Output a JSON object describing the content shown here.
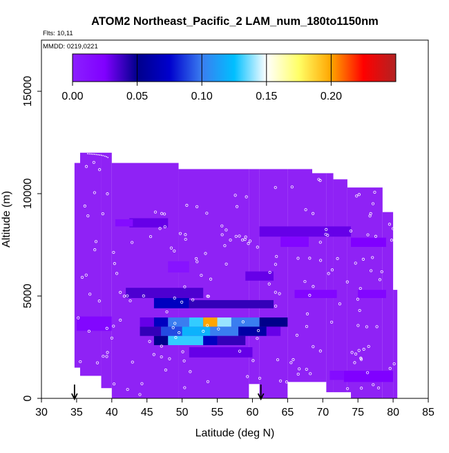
{
  "chart_data": {
    "type": "heatmap",
    "title": "ATOM2 Northeast_Pacific_2 LAM_num_180to1150nm",
    "info_lines": [
      "Flts: 10,11",
      "MMDD: 0219,0221"
    ],
    "xlabel": "Latitude (deg N)",
    "ylabel": "Altitude (m)",
    "xlim": [
      30,
      85
    ],
    "ylim": [
      0,
      17500
    ],
    "x_ticks": [
      "30",
      "35",
      "40",
      "45",
      "50",
      "55",
      "60",
      "65",
      "70",
      "75",
      "80",
      "85"
    ],
    "y_ticks": [
      "0",
      "5000",
      "10000",
      "15000"
    ],
    "colorbar": {
      "range": [
        0,
        0.25
      ],
      "tick_labels": [
        "0.00",
        "0.05",
        "0.10",
        "0.15",
        "0.20"
      ],
      "tick_values": [
        0,
        0.05,
        0.1,
        0.15,
        0.2
      ],
      "gradient": [
        "#8b1fff",
        "#8000ff",
        "#00008b",
        "#0000cd",
        "#3a7df0",
        "#00bfff",
        "#ffffff",
        "#ffff66",
        "#ffa500",
        "#ff0000",
        "#b22222"
      ]
    },
    "background_color": "#8f22f5",
    "arrows_at_latitude": [
      34.7,
      61.2
    ],
    "colored_cells": [
      {
        "lat": [
          42.5,
          48
        ],
        "alt": [
          8350,
          8800
        ],
        "value": 0.03
      },
      {
        "lat": [
          40.5,
          43
        ],
        "alt": [
          8400,
          8750
        ],
        "value": 0.015
      },
      {
        "lat": [
          48,
          51
        ],
        "alt": [
          6150,
          6700
        ],
        "value": 0.01
      },
      {
        "lat": [
          61,
          74
        ],
        "alt": [
          7900,
          8400
        ],
        "value": 0.03
      },
      {
        "lat": [
          64,
          68
        ],
        "alt": [
          7400,
          7900
        ],
        "value": 0.02
      },
      {
        "lat": [
          74,
          79
        ],
        "alt": [
          7400,
          7850
        ],
        "value": 0.025
      },
      {
        "lat": [
          59,
          63
        ],
        "alt": [
          5750,
          6200
        ],
        "value": 0.03
      },
      {
        "lat": [
          42,
          53
        ],
        "alt": [
          4900,
          5400
        ],
        "value": 0.035
      },
      {
        "lat": [
          46,
          51
        ],
        "alt": [
          4400,
          4900
        ],
        "value": 0.07
      },
      {
        "lat": [
          51,
          63
        ],
        "alt": [
          4400,
          4800
        ],
        "value": 0.04
      },
      {
        "lat": [
          66,
          72
        ],
        "alt": [
          4900,
          5300
        ],
        "value": 0.02
      },
      {
        "lat": [
          75,
          79
        ],
        "alt": [
          4900,
          5300
        ],
        "value": 0.02
      },
      {
        "lat": [
          35,
          40
        ],
        "alt": [
          3300,
          4000
        ],
        "value": 0.02
      },
      {
        "lat": [
          44,
          46
        ],
        "alt": [
          3500,
          3950
        ],
        "value": 0.03
      },
      {
        "lat": [
          46,
          48
        ],
        "alt": [
          3500,
          3950
        ],
        "value": 0.07
      },
      {
        "lat": [
          48,
          51
        ],
        "alt": [
          3500,
          3950
        ],
        "value": 0.1
      },
      {
        "lat": [
          51,
          53
        ],
        "alt": [
          3500,
          3950
        ],
        "value": 0.13
      },
      {
        "lat": [
          53,
          55
        ],
        "alt": [
          3500,
          3950
        ],
        "value": 0.2
      },
      {
        "lat": [
          55,
          57
        ],
        "alt": [
          3500,
          3950
        ],
        "value": 0.14
      },
      {
        "lat": [
          57,
          61
        ],
        "alt": [
          3500,
          3950
        ],
        "value": 0.1
      },
      {
        "lat": [
          61,
          65
        ],
        "alt": [
          3500,
          3950
        ],
        "value": 0.05
      },
      {
        "lat": [
          44,
          47
        ],
        "alt": [
          3050,
          3500
        ],
        "value": 0.04
      },
      {
        "lat": [
          47,
          50
        ],
        "alt": [
          3050,
          3500
        ],
        "value": 0.09
      },
      {
        "lat": [
          50,
          54
        ],
        "alt": [
          3050,
          3500
        ],
        "value": 0.12
      },
      {
        "lat": [
          54,
          58
        ],
        "alt": [
          3050,
          3500
        ],
        "value": 0.1
      },
      {
        "lat": [
          58,
          62
        ],
        "alt": [
          3050,
          3500
        ],
        "value": 0.06
      },
      {
        "lat": [
          62,
          64
        ],
        "alt": [
          3050,
          3500
        ],
        "value": 0.03
      },
      {
        "lat": [
          46,
          48
        ],
        "alt": [
          2600,
          3050
        ],
        "value": 0.05
      },
      {
        "lat": [
          48,
          53
        ],
        "alt": [
          2600,
          3050
        ],
        "value": 0.13
      },
      {
        "lat": [
          53,
          55
        ],
        "alt": [
          2600,
          3050
        ],
        "value": 0.07
      },
      {
        "lat": [
          55,
          59
        ],
        "alt": [
          2600,
          3050
        ],
        "value": 0.04
      },
      {
        "lat": [
          51,
          60
        ],
        "alt": [
          2000,
          2500
        ],
        "value": 0.03
      },
      {
        "lat": [
          73,
          80
        ],
        "alt": [
          800,
          1350
        ],
        "value": 0.025
      },
      {
        "lat": [
          71,
          73
        ],
        "alt": [
          900,
          1350
        ],
        "value": 0.015
      }
    ]
  }
}
